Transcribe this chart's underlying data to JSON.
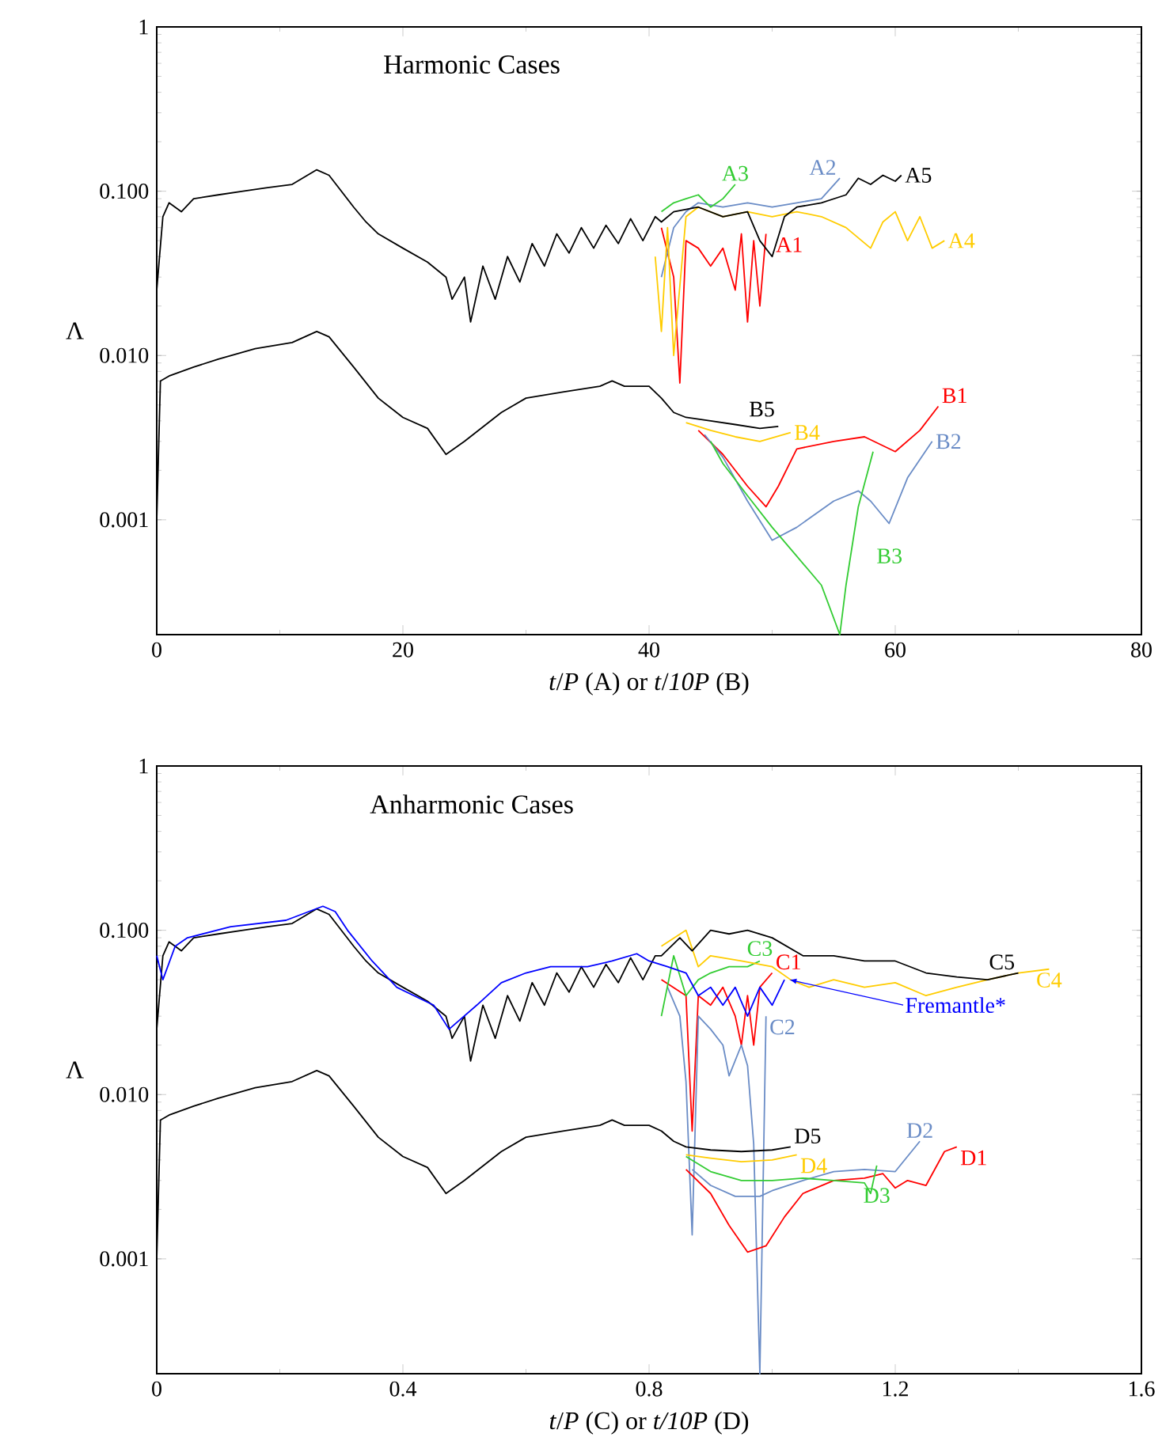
{
  "chart_data": [
    {
      "type": "line",
      "title": "Harmonic Cases",
      "xlabel": "*t*/*P* (A) or *t*/*10P* (B)",
      "ylabel": "Λ",
      "log": "y",
      "xlim": [
        0,
        80
      ],
      "ylim": [
        0.0002,
        1
      ],
      "xticks": [
        0,
        20,
        40,
        60,
        80
      ],
      "yticks": [
        {
          "value": 0.001,
          "label": "0.001"
        },
        {
          "value": 0.01,
          "label": "0.010"
        },
        {
          "value": 0.1,
          "label": "0.100"
        },
        {
          "value": 1,
          "label": "1"
        }
      ],
      "series": [
        {
          "name": "A1",
          "color": "#ff0000",
          "x": [
            41,
            42,
            42.5,
            43,
            44,
            45,
            46,
            47,
            47.5,
            48,
            48.5,
            49,
            49.5
          ],
          "values": [
            0.06,
            0.03,
            0.0068,
            0.05,
            0.045,
            0.035,
            0.045,
            0.025,
            0.055,
            0.016,
            0.05,
            0.02,
            0.055
          ]
        },
        {
          "name": "A2",
          "color": "#6a8cc6",
          "x": [
            41,
            42,
            43,
            44,
            46,
            48,
            50,
            52,
            54,
            55.5
          ],
          "values": [
            0.03,
            0.06,
            0.075,
            0.085,
            0.08,
            0.085,
            0.08,
            0.085,
            0.09,
            0.12
          ]
        },
        {
          "name": "A3",
          "color": "#33cc33",
          "x": [
            41,
            42,
            43,
            44,
            45,
            46,
            47
          ],
          "values": [
            0.075,
            0.085,
            0.09,
            0.095,
            0.08,
            0.09,
            0.11
          ]
        },
        {
          "name": "A4",
          "color": "#ffcc00",
          "x": [
            40.5,
            41,
            41.5,
            42,
            43,
            44,
            46,
            48,
            50,
            52,
            54,
            56,
            58,
            59,
            60,
            61,
            62,
            63,
            64
          ],
          "values": [
            0.04,
            0.014,
            0.06,
            0.01,
            0.07,
            0.08,
            0.07,
            0.075,
            0.07,
            0.075,
            0.07,
            0.06,
            0.045,
            0.065,
            0.075,
            0.05,
            0.07,
            0.045,
            0.05
          ]
        },
        {
          "name": "A5",
          "color": "#000000",
          "x": [
            0,
            0.5,
            1,
            2,
            3,
            5,
            7,
            9,
            11,
            13,
            14,
            15,
            16,
            17,
            18,
            20,
            22,
            23.5,
            24,
            25,
            25.5,
            26.5,
            27.5,
            28.5,
            29.5,
            30.5,
            31.5,
            32.5,
            33.5,
            34.5,
            35.5,
            36.5,
            37.5,
            38.5,
            39.5,
            40.5,
            41,
            42,
            44,
            46,
            48,
            49,
            50,
            51,
            52,
            54,
            56,
            57,
            58,
            59,
            60,
            60.5
          ],
          "values": [
            0.025,
            0.07,
            0.085,
            0.075,
            0.09,
            0.095,
            0.1,
            0.105,
            0.11,
            0.135,
            0.125,
            0.1,
            0.08,
            0.065,
            0.055,
            0.045,
            0.037,
            0.03,
            0.022,
            0.03,
            0.016,
            0.035,
            0.022,
            0.04,
            0.028,
            0.048,
            0.035,
            0.055,
            0.042,
            0.06,
            0.045,
            0.062,
            0.048,
            0.068,
            0.05,
            0.07,
            0.065,
            0.075,
            0.08,
            0.07,
            0.075,
            0.05,
            0.04,
            0.07,
            0.08,
            0.085,
            0.095,
            0.12,
            0.11,
            0.125,
            0.115,
            0.125
          ]
        },
        {
          "name": "B1",
          "color": "#ff0000",
          "x": [
            44,
            46,
            48,
            49.5,
            50.5,
            52,
            55,
            57.5,
            60,
            62,
            63.5
          ],
          "values": [
            0.0035,
            0.0025,
            0.0016,
            0.0012,
            0.0016,
            0.0027,
            0.003,
            0.0032,
            0.0026,
            0.0035,
            0.0049
          ]
        },
        {
          "name": "B2",
          "color": "#6a8cc6",
          "x": [
            44.5,
            46,
            48,
            50,
            52,
            55,
            57,
            58,
            59.5,
            61,
            63
          ],
          "values": [
            0.0033,
            0.0024,
            0.0013,
            0.00075,
            0.0009,
            0.0013,
            0.0015,
            0.0013,
            0.00095,
            0.0018,
            0.003
          ]
        },
        {
          "name": "B3",
          "color": "#33cc33",
          "x": [
            45,
            46,
            48,
            50,
            52,
            54,
            55.5,
            56,
            57,
            58.2
          ],
          "values": [
            0.003,
            0.0022,
            0.0014,
            0.0009,
            0.0006,
            0.0004,
            0.0002,
            0.0004,
            0.0012,
            0.0026
          ]
        },
        {
          "name": "B4",
          "color": "#ffcc00",
          "x": [
            43,
            45,
            47,
            49,
            51.5
          ],
          "values": [
            0.0039,
            0.0035,
            0.0032,
            0.003,
            0.0034
          ]
        },
        {
          "name": "B5",
          "color": "#000000",
          "x": [
            0,
            0.3,
            1,
            3,
            5,
            8,
            11,
            13,
            14,
            16,
            18,
            20,
            22,
            23.5,
            25,
            28,
            30,
            33,
            36,
            37,
            38,
            40,
            41,
            42,
            43,
            45,
            47,
            49,
            50.5
          ],
          "values": [
            0.001,
            0.007,
            0.0075,
            0.0085,
            0.0095,
            0.011,
            0.012,
            0.014,
            0.013,
            0.0085,
            0.0055,
            0.0042,
            0.0036,
            0.0025,
            0.003,
            0.0045,
            0.0055,
            0.006,
            0.0065,
            0.007,
            0.0065,
            0.0065,
            0.0055,
            0.0045,
            0.0042,
            0.004,
            0.0038,
            0.0036,
            0.0037
          ]
        }
      ]
    },
    {
      "type": "line",
      "title": "Anharmonic Cases",
      "xlabel": "*t*/*P* (C) or *t/10P* (D)",
      "ylabel": "Λ",
      "log": "y",
      "xlim": [
        0,
        1.6
      ],
      "ylim": [
        0.0002,
        1
      ],
      "xticks": [
        0,
        0.4,
        0.8,
        1.2,
        1.6
      ],
      "yticks": [
        {
          "value": 0.001,
          "label": "0.001"
        },
        {
          "value": 0.01,
          "label": "0.010"
        },
        {
          "value": 0.1,
          "label": "0.100"
        },
        {
          "value": 1,
          "label": "1"
        }
      ],
      "series": [
        {
          "name": "C1",
          "color": "#ff0000",
          "x": [
            0.82,
            0.86,
            0.87,
            0.88,
            0.9,
            0.92,
            0.94,
            0.95,
            0.96,
            0.97,
            0.98,
            1.0
          ],
          "values": [
            0.05,
            0.04,
            0.006,
            0.04,
            0.035,
            0.045,
            0.03,
            0.02,
            0.04,
            0.02,
            0.045,
            0.055
          ]
        },
        {
          "name": "C2",
          "color": "#6a8cc6",
          "x": [
            0.83,
            0.85,
            0.86,
            0.87,
            0.88,
            0.9,
            0.92,
            0.93,
            0.95,
            0.96,
            0.97,
            0.98,
            0.99
          ],
          "values": [
            0.045,
            0.03,
            0.012,
            0.0014,
            0.03,
            0.025,
            0.02,
            0.013,
            0.02,
            0.015,
            0.005,
            0.0002,
            0.03
          ]
        },
        {
          "name": "C3",
          "color": "#33cc33",
          "x": [
            0.82,
            0.84,
            0.86,
            0.88,
            0.9,
            0.93,
            0.96,
            0.98
          ],
          "values": [
            0.03,
            0.07,
            0.04,
            0.05,
            0.055,
            0.06,
            0.06,
            0.065
          ]
        },
        {
          "name": "C4",
          "color": "#ffcc00",
          "x": [
            0.82,
            0.86,
            0.88,
            0.9,
            0.95,
            1.0,
            1.03,
            1.06,
            1.1,
            1.15,
            1.2,
            1.25,
            1.3,
            1.35,
            1.4,
            1.45
          ],
          "values": [
            0.08,
            0.1,
            0.06,
            0.07,
            0.065,
            0.06,
            0.05,
            0.045,
            0.05,
            0.045,
            0.048,
            0.04,
            0.045,
            0.05,
            0.055,
            0.058
          ]
        },
        {
          "name": "C5",
          "color": "#000000",
          "x": [
            0,
            0.01,
            0.02,
            0.04,
            0.06,
            0.1,
            0.14,
            0.18,
            0.22,
            0.26,
            0.28,
            0.3,
            0.32,
            0.34,
            0.36,
            0.4,
            0.44,
            0.47,
            0.48,
            0.5,
            0.51,
            0.53,
            0.55,
            0.57,
            0.59,
            0.61,
            0.63,
            0.65,
            0.67,
            0.69,
            0.71,
            0.73,
            0.75,
            0.77,
            0.79,
            0.81,
            0.82,
            0.85,
            0.87,
            0.9,
            0.93,
            0.96,
            1.0,
            1.05,
            1.1,
            1.15,
            1.2,
            1.25,
            1.3,
            1.35,
            1.4
          ],
          "values": [
            0.025,
            0.07,
            0.085,
            0.075,
            0.09,
            0.095,
            0.1,
            0.105,
            0.11,
            0.135,
            0.125,
            0.1,
            0.08,
            0.065,
            0.055,
            0.045,
            0.037,
            0.03,
            0.022,
            0.03,
            0.016,
            0.035,
            0.022,
            0.04,
            0.028,
            0.048,
            0.035,
            0.055,
            0.042,
            0.06,
            0.045,
            0.062,
            0.048,
            0.068,
            0.05,
            0.07,
            0.07,
            0.09,
            0.075,
            0.1,
            0.095,
            0.1,
            0.09,
            0.07,
            0.07,
            0.065,
            0.065,
            0.055,
            0.052,
            0.05,
            0.055
          ]
        },
        {
          "name": "D1",
          "color": "#ff0000",
          "x": [
            0.86,
            0.9,
            0.93,
            0.96,
            0.99,
            1.02,
            1.05,
            1.1,
            1.15,
            1.18,
            1.2,
            1.22,
            1.25,
            1.28,
            1.3
          ],
          "values": [
            0.0035,
            0.0025,
            0.0016,
            0.0011,
            0.0012,
            0.0018,
            0.0025,
            0.003,
            0.0031,
            0.0033,
            0.0027,
            0.003,
            0.0028,
            0.0045,
            0.0048
          ]
        },
        {
          "name": "D2",
          "color": "#6a8cc6",
          "x": [
            0.87,
            0.9,
            0.94,
            0.98,
            1.0,
            1.05,
            1.1,
            1.15,
            1.2,
            1.24
          ],
          "values": [
            0.0035,
            0.0028,
            0.0024,
            0.0024,
            0.0026,
            0.003,
            0.0034,
            0.0035,
            0.0034,
            0.0052
          ]
        },
        {
          "name": "D3",
          "color": "#33cc33",
          "x": [
            0.86,
            0.9,
            0.95,
            1.0,
            1.05,
            1.1,
            1.15,
            1.16,
            1.17
          ],
          "values": [
            0.0042,
            0.0034,
            0.003,
            0.003,
            0.0031,
            0.003,
            0.0029,
            0.0025,
            0.0037
          ]
        },
        {
          "name": "D4",
          "color": "#ffcc00",
          "x": [
            0.86,
            0.9,
            0.95,
            1.0,
            1.04
          ],
          "values": [
            0.0043,
            0.0041,
            0.0039,
            0.004,
            0.0043
          ]
        },
        {
          "name": "D5",
          "color": "#000000",
          "x": [
            0,
            0.006,
            0.02,
            0.06,
            0.1,
            0.16,
            0.22,
            0.26,
            0.28,
            0.32,
            0.36,
            0.4,
            0.44,
            0.47,
            0.5,
            0.56,
            0.6,
            0.66,
            0.72,
            0.74,
            0.76,
            0.8,
            0.82,
            0.84,
            0.86,
            0.9,
            0.95,
            1.0,
            1.03
          ],
          "values": [
            0.001,
            0.007,
            0.0075,
            0.0085,
            0.0095,
            0.011,
            0.012,
            0.014,
            0.013,
            0.0085,
            0.0055,
            0.0042,
            0.0036,
            0.0025,
            0.003,
            0.0045,
            0.0055,
            0.006,
            0.0065,
            0.007,
            0.0065,
            0.0065,
            0.006,
            0.0052,
            0.0048,
            0.0046,
            0.0045,
            0.0046,
            0.0048
          ]
        },
        {
          "name": "Fremantle*",
          "color": "#0000ff",
          "x": [
            0,
            0.01,
            0.03,
            0.05,
            0.12,
            0.21,
            0.27,
            0.29,
            0.31,
            0.35,
            0.39,
            0.45,
            0.475,
            0.52,
            0.56,
            0.6,
            0.64,
            0.7,
            0.74,
            0.78,
            0.8,
            0.83,
            0.86,
            0.88,
            0.9,
            0.92,
            0.94,
            0.96,
            0.98,
            1.0,
            1.02
          ],
          "values": [
            0.07,
            0.05,
            0.08,
            0.09,
            0.105,
            0.115,
            0.14,
            0.13,
            0.1,
            0.065,
            0.045,
            0.035,
            0.025,
            0.035,
            0.048,
            0.055,
            0.06,
            0.06,
            0.065,
            0.072,
            0.065,
            0.06,
            0.055,
            0.04,
            0.045,
            0.035,
            0.045,
            0.03,
            0.045,
            0.035,
            0.05
          ]
        }
      ]
    }
  ]
}
